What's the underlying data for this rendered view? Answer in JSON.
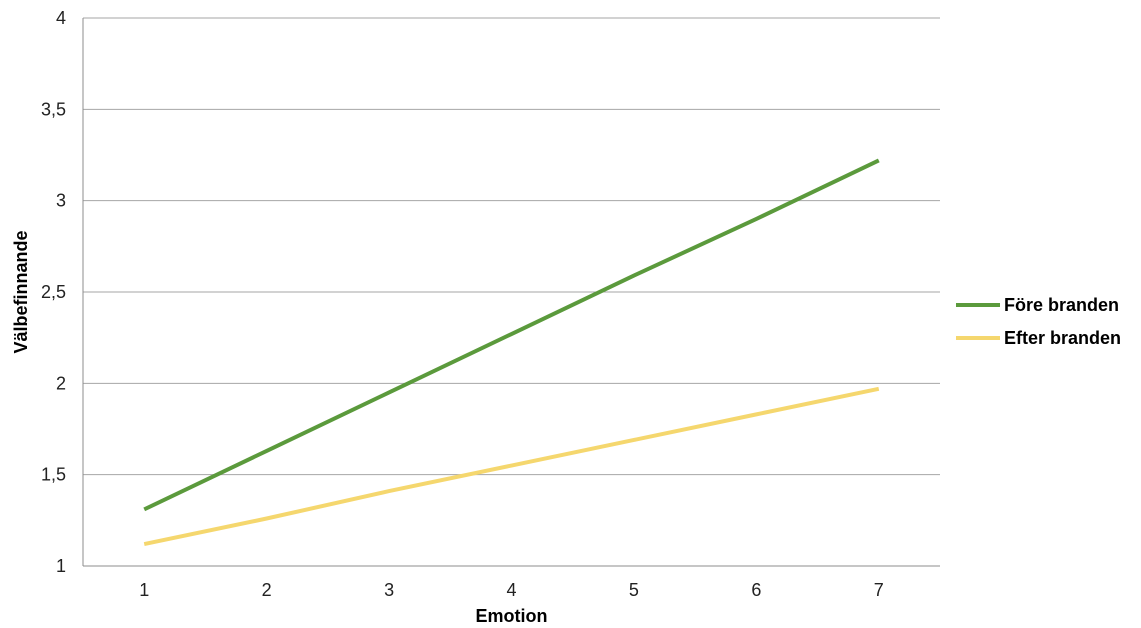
{
  "chart_data": {
    "type": "line",
    "xlabel": "Emotion",
    "ylabel": "Välbefinnande",
    "x": [
      1,
      2,
      3,
      4,
      5,
      6,
      7
    ],
    "x_tick_labels": [
      "1",
      "2",
      "3",
      "4",
      "5",
      "6",
      "7"
    ],
    "ylim": [
      1,
      4
    ],
    "y_ticks": [
      1,
      1.5,
      2,
      2.5,
      3,
      3.5,
      4
    ],
    "y_tick_labels": [
      "1",
      "1,5",
      "2",
      "2,5",
      "3",
      "3,5",
      "4"
    ],
    "grid": "horizontal",
    "legend_position": "right",
    "series": [
      {
        "name": "Före branden",
        "color": "#5b9a3c",
        "values": [
          1.31,
          1.63,
          1.95,
          2.27,
          2.59,
          2.9,
          3.22
        ]
      },
      {
        "name": "Efter branden",
        "color": "#f5d76e",
        "values": [
          1.12,
          1.26,
          1.41,
          1.55,
          1.69,
          1.83,
          1.97
        ]
      }
    ]
  }
}
